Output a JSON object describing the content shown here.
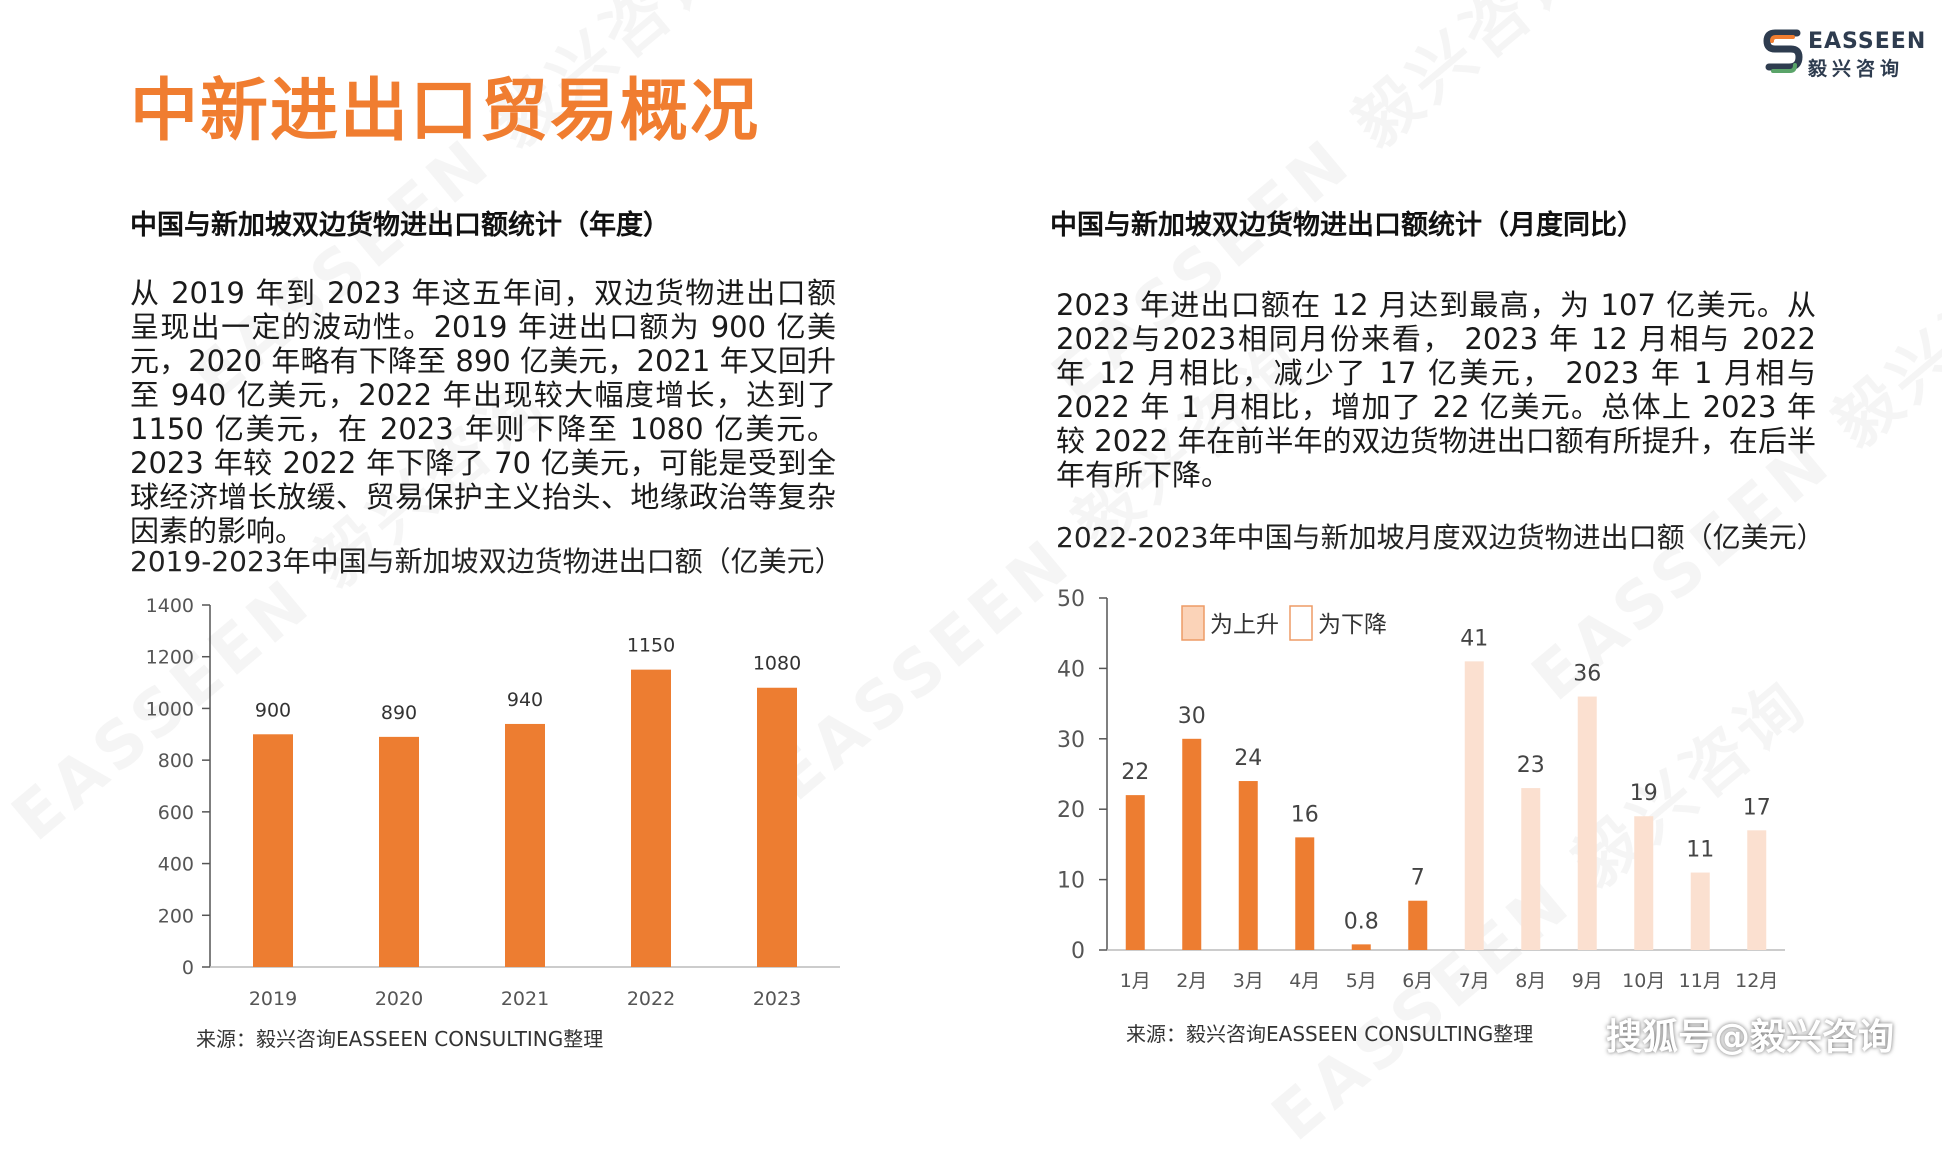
{
  "page": {
    "title": "中新进出口贸易概况",
    "logo_top": "EASSEEN",
    "logo_bottom": "毅兴咨询",
    "watermark": "EASSEEN 毅兴咨询",
    "footer": "搜狐号@毅兴咨询"
  },
  "left": {
    "section_title": "中国与新加坡双边货物进出口额统计（年度）",
    "paragraph": "从 2019 年到 2023 年这五年间，双边货物进出口额呈现出一定的波动性。2019 年进出口额为 900 亿美元，2020 年略有下降至 890 亿美元，2021 年又回升至 940 亿美元，2022 年出现较大幅度增长，达到了 1150 亿美元，在 2023 年则下降至 1080 亿美元。2023 年较 2022 年下降了 70 亿美元，可能是受到全球经济增长放缓、贸易保护主义抬头、地缘政治等复杂因素的影响。",
    "source": "来源：毅兴咨询EASSEEN CONSULTING整理"
  },
  "right": {
    "section_title": "中国与新加坡双边货物进出口额统计（月度同比）",
    "paragraph": "2023 年进出口额在 12 月达到最高，为 107 亿美元。从2022与2023相同月份来看， 2023 年 12 月相与 2022 年 12 月相比，减少了 17 亿美元， 2023 年 1 月相与 2022 年 1 月相比，增加了 22 亿美元。总体上 2023 年较 2022 年在前半年的双边货物进出口额有所提升，在后半年有所下降。",
    "source": "来源：毅兴咨询EASSEEN CONSULTING整理"
  },
  "colors": {
    "accent": "#f07d30",
    "bar_up": "#ed7d31",
    "bar_down": "#fbe0d0"
  },
  "chart_data": [
    {
      "type": "bar",
      "title": "2019-2023年中国与新加坡双边货物进出口额（亿美元）",
      "categories": [
        "2019",
        "2020",
        "2021",
        "2022",
        "2023"
      ],
      "values": [
        900,
        890,
        940,
        1150,
        1080
      ],
      "ylim": [
        0,
        1400
      ],
      "yticks": [
        0,
        200,
        400,
        600,
        800,
        1000,
        1200,
        1400
      ],
      "grid": false,
      "legend": "none"
    },
    {
      "type": "bar",
      "title": "2022-2023年中国与新加坡月度双边货物进出口额（亿美元）",
      "categories": [
        "1月",
        "2月",
        "3月",
        "4月",
        "5月",
        "6月",
        "7月",
        "8月",
        "9月",
        "10月",
        "11月",
        "12月"
      ],
      "values": [
        22,
        30,
        24,
        16,
        0.8,
        7,
        41,
        23,
        36,
        19,
        11,
        17
      ],
      "value_labels": [
        "22",
        "30",
        "24",
        "16",
        "0.8",
        "7",
        "41",
        "23",
        "36",
        "19",
        "11",
        "17"
      ],
      "direction": [
        "up",
        "up",
        "up",
        "up",
        "up",
        "up",
        "down",
        "down",
        "down",
        "down",
        "down",
        "down"
      ],
      "legend_entries": [
        {
          "key": "up",
          "label": "为上升"
        },
        {
          "key": "down",
          "label": "为下降"
        }
      ],
      "ylim": [
        0,
        50
      ],
      "yticks": [
        0,
        10,
        20,
        30,
        40,
        50
      ],
      "grid": false,
      "legend": "top-left"
    }
  ]
}
